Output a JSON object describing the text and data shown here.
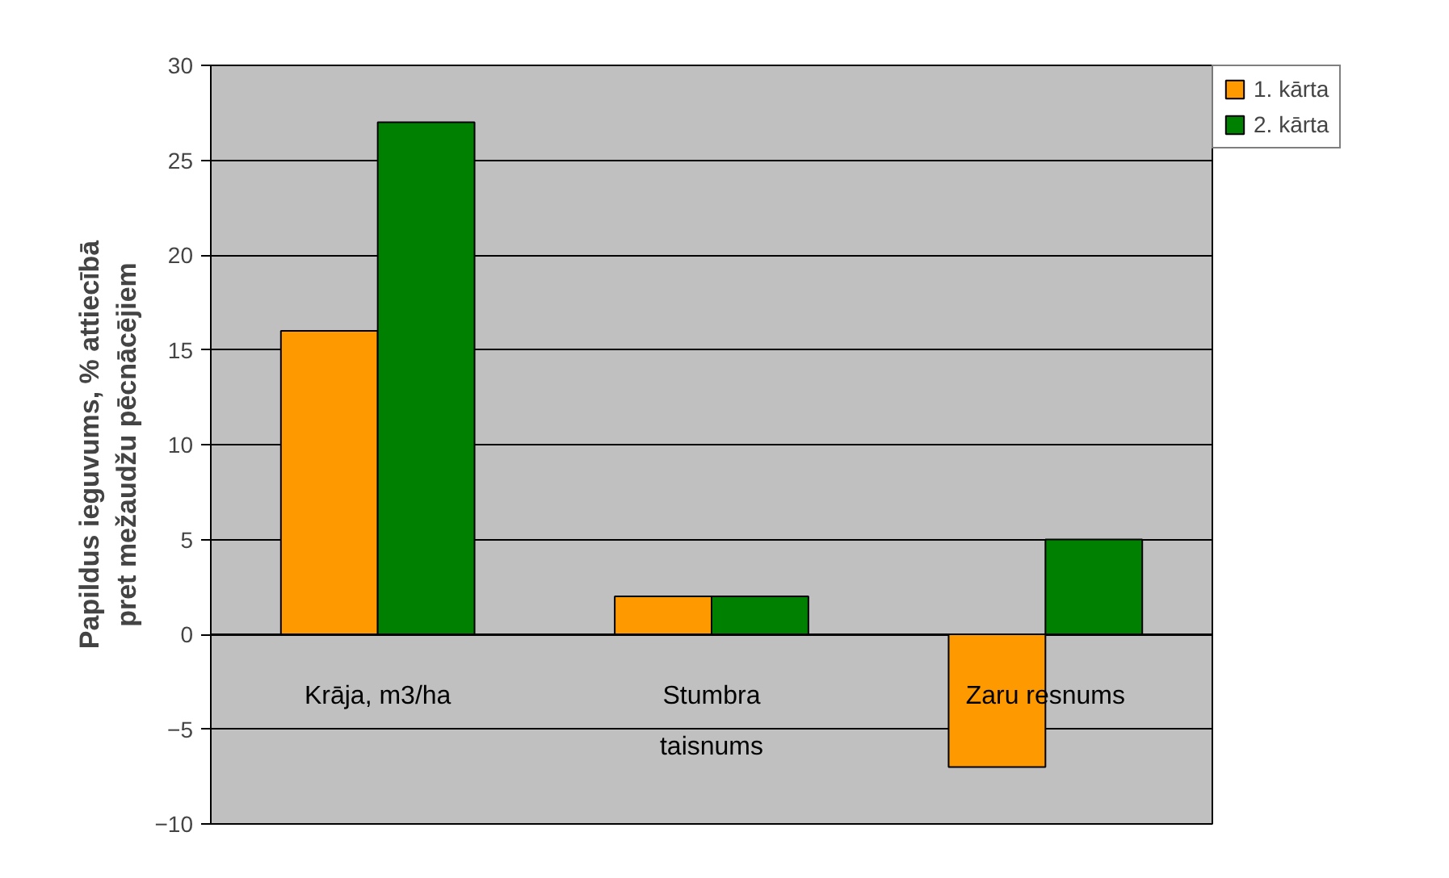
{
  "chart_data": {
    "type": "bar",
    "ylabel": "Papildus ieguvums, % attiecībā pret mežaudžu pēcnācējiem",
    "categories": [
      "Krāja, m3/ha",
      "Stumbra taisnums",
      "Zaru resnums"
    ],
    "series": [
      {
        "name": "1. kārta",
        "color": "#ff9900",
        "values": [
          16,
          2,
          -7
        ]
      },
      {
        "name": "2. kārta",
        "color": "#008000",
        "values": [
          27,
          2,
          5
        ]
      }
    ],
    "ylim": [
      -10,
      30
    ],
    "yticks": [
      -10,
      -5,
      0,
      5,
      10,
      15,
      20,
      25,
      30
    ],
    "grid": "y",
    "legend": "right"
  }
}
